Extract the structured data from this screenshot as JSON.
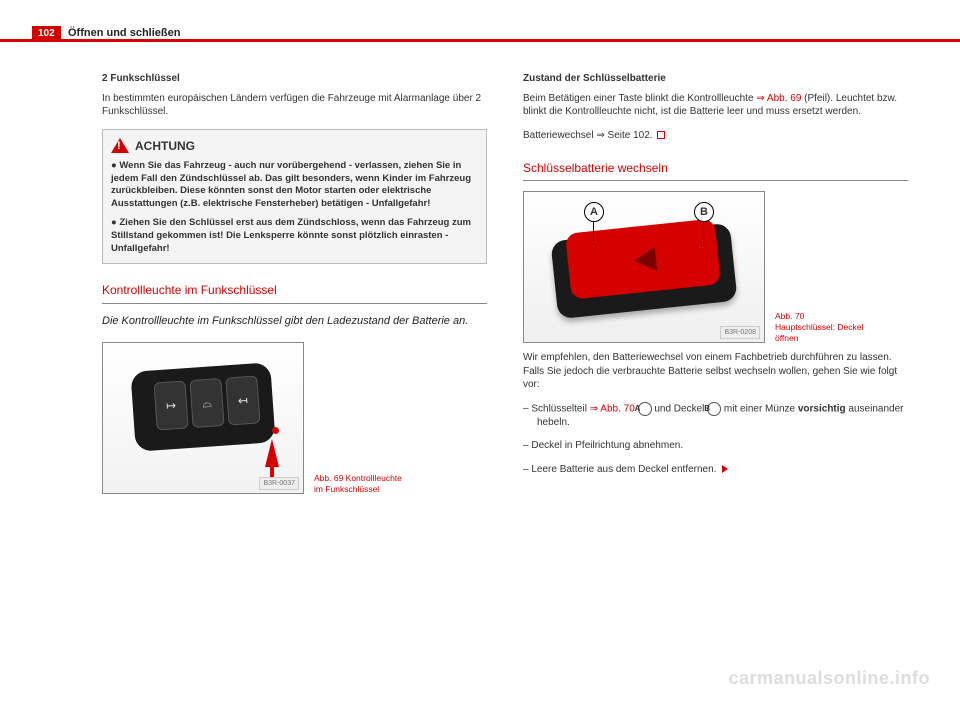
{
  "page_number": "102",
  "chapter": "Öffnen und schließen",
  "watermark": "carmanualsonline.info",
  "left": {
    "h1": "2 Funkschlüssel",
    "p1": "In bestimmten europäischen Ländern verfügen die Fahrzeuge mit Alarmanlage über 2 Funkschlüssel.",
    "warn_title": "ACHTUNG",
    "warn_b1": "●  Wenn Sie das Fahrzeug - auch nur vorübergehend - verlassen, ziehen Sie in jedem Fall den Zündschlüssel ab. Das gilt besonders, wenn Kinder im Fahrzeug zurückbleiben. Diese könnten sonst den Motor starten oder elektrische Ausstattungen (z.B. elektrische Fensterheber) betätigen - Unfallgefahr!",
    "warn_b2": "●  Ziehen Sie den Schlüssel erst aus dem Zündschloss, wenn das Fahrzeug zum Stillstand gekommen ist! Die Lenksperre könnte sonst plötzlich einrasten - Unfallgefahr!",
    "sect": "Kontrollleuchte im Funkschlüssel",
    "lead": "Die Kontrollleuchte im Funkschlüssel gibt den Ladezustand der Batterie an.",
    "fig69_tag": "B3R-0037",
    "fig69_cap": "Abb. 69  Kontrollleuchte im Funkschlüssel",
    "btn1": "�ūñ",
    "btn2": "⌂",
    "btn3": "⊡"
  },
  "right": {
    "h1": "Zustand der Schlüsselbatterie",
    "p1a": "Beim Betätigen einer Taste blinkt die Kontrollleuchte ",
    "p1link": "⇒ Abb. 69",
    "p1b": " (Pfeil). Leuchtet bzw. blinkt die Kontrollleuchte nicht, ist die Batterie leer und muss ersetzt werden.",
    "p2": "Batteriewechsel ⇒ Seite 102.",
    "sect": "Schlüsselbatterie wechseln",
    "fig70_tag": "B3R-0208",
    "fig70_cap": "Abb. 70  Hauptschlüssel: Deckel öffnen",
    "lblA": "A",
    "lblB": "B",
    "p3": "Wir empfehlen, den Batteriewechsel von einem Fachbetrieb durchführen zu lassen. Falls Sie jedoch die verbrauchte Batterie selbst wechseln wollen, gehen Sie wie folgt vor:",
    "s1a": "Schlüsselteil ",
    "s1link": "⇒ Abb. 70",
    "s1b": " und Deckel ",
    "s1c": " mit einer Münze ",
    "s1d": "vorsichtig",
    "s1e": " auseinander hebeln.",
    "s2": "Deckel in Pfeilrichtung abnehmen.",
    "s3": "Leere Batterie aus dem Deckel entfernen."
  }
}
